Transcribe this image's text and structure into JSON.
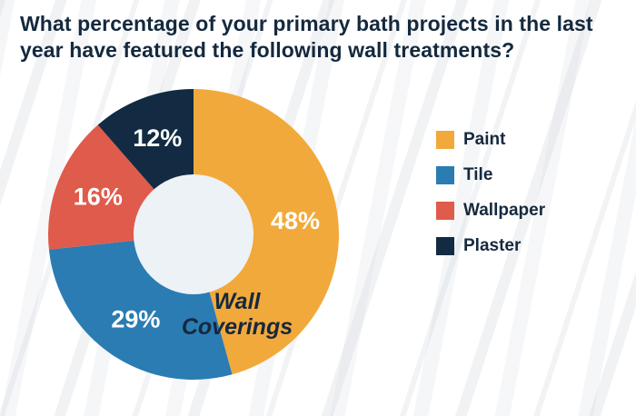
{
  "title": "What percentage of your primary bath projects in the last year have featured the following wall treatments?",
  "chart_data": {
    "type": "pie",
    "donut": true,
    "title": "Wall Coverings",
    "center_label_line1": "Wall",
    "center_label_line2": "Coverings",
    "categories": [
      "Paint",
      "Tile",
      "Wallpaper",
      "Plaster"
    ],
    "values": [
      48,
      29,
      16,
      12
    ],
    "labels": [
      "48%",
      "29%",
      "16%",
      "12%"
    ],
    "colors": [
      "#F2A93B",
      "#2B7CB3",
      "#DF5B4B",
      "#122B42"
    ],
    "hole_color": "#EDF2F7",
    "legend_position": "right",
    "start_angle_deg": 0,
    "direction": "clockwise"
  }
}
